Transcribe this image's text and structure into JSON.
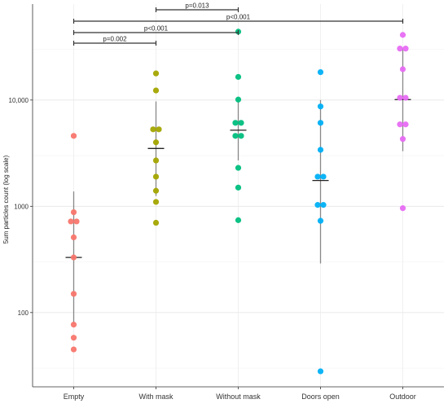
{
  "chart_data": {
    "type": "scatter",
    "title": "",
    "xlabel": "",
    "ylabel": "5um particles count (log scale)",
    "yscale": "log",
    "ylim": [
      20,
      80000
    ],
    "grid": true,
    "categories": [
      "Empty",
      "With mask",
      "Without mask",
      "Doors open",
      "Outdoor"
    ],
    "yticks": [
      {
        "value": 100,
        "label": "100"
      },
      {
        "value": 1000,
        "label": "1000"
      },
      {
        "value": 10000,
        "label": "10,000"
      }
    ],
    "series": [
      {
        "category": "Empty",
        "color": "#F8766D",
        "values": [
          4600,
          880,
          720,
          720,
          510,
          330,
          150,
          77,
          58,
          45
        ],
        "mean": 330,
        "sd_low": 78,
        "sd_high": 1380
      },
      {
        "category": "With mask",
        "color": "#A3A500",
        "values": [
          17800,
          12300,
          5300,
          5300,
          4000,
          2700,
          1900,
          1400,
          1100,
          700
        ],
        "mean": 3500,
        "sd_low": 1250,
        "sd_high": 9700
      },
      {
        "category": "Without mask",
        "color": "#00BF7D",
        "values": [
          44000,
          16500,
          10100,
          6100,
          6100,
          4600,
          4600,
          2300,
          1500,
          740
        ],
        "mean": 5200,
        "sd_low": 2700,
        "sd_high": 10200
      },
      {
        "category": "Doors open",
        "color": "#00B0F6",
        "values": [
          18300,
          8700,
          6100,
          3400,
          1900,
          1900,
          1030,
          1030,
          730,
          28
        ],
        "mean": 1750,
        "sd_low": 290,
        "sd_high": 10000
      },
      {
        "category": "Outdoor",
        "color": "#E76BF3",
        "values": [
          41000,
          30500,
          30500,
          19500,
          10500,
          10500,
          5900,
          5900,
          4300,
          960
        ],
        "mean": 10100,
        "sd_low": 3300,
        "sd_high": 30800
      }
    ],
    "comparisons": [
      {
        "from": "With mask",
        "to": "Without mask",
        "label": "p=0.013"
      },
      {
        "from": "Empty",
        "to": "Outdoor",
        "label": "p<0.001"
      },
      {
        "from": "Empty",
        "to": "Without mask",
        "label": "p<0.001"
      },
      {
        "from": "Empty",
        "to": "With mask",
        "label": "p=0.002"
      }
    ]
  }
}
